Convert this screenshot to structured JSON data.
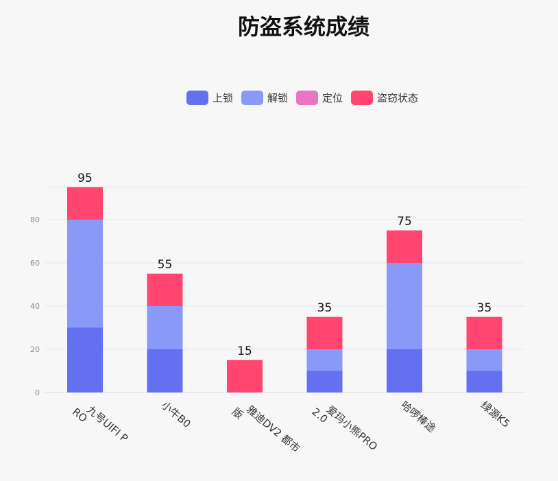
{
  "chart_data": {
    "type": "bar",
    "stacked": true,
    "title": "防盗系统成绩",
    "categories": [
      "九号UIFI PRO",
      "小牛B0",
      "雅迪DV2 都市版",
      "爱玛小熊PRO 2.0",
      "哈啰棒途",
      "绿源K5"
    ],
    "series": [
      {
        "name": "上锁",
        "color": "#6470f0",
        "values": [
          30,
          20,
          0,
          10,
          20,
          10
        ]
      },
      {
        "name": "解锁",
        "color": "#8a98f7",
        "values": [
          50,
          20,
          0,
          10,
          40,
          10
        ]
      },
      {
        "name": "定位",
        "color": "#ea76c2",
        "values": [
          0,
          0,
          0,
          0,
          0,
          0
        ]
      },
      {
        "name": "盗窃状态",
        "color": "#ff4570",
        "values": [
          15,
          15,
          15,
          15,
          15,
          15
        ]
      }
    ],
    "totals": [
      95,
      55,
      15,
      35,
      75,
      35
    ],
    "ylim": [
      0,
      95
    ],
    "yticks": [
      0,
      20,
      40,
      60,
      80
    ],
    "legend_position": "top-center",
    "grid": true
  }
}
